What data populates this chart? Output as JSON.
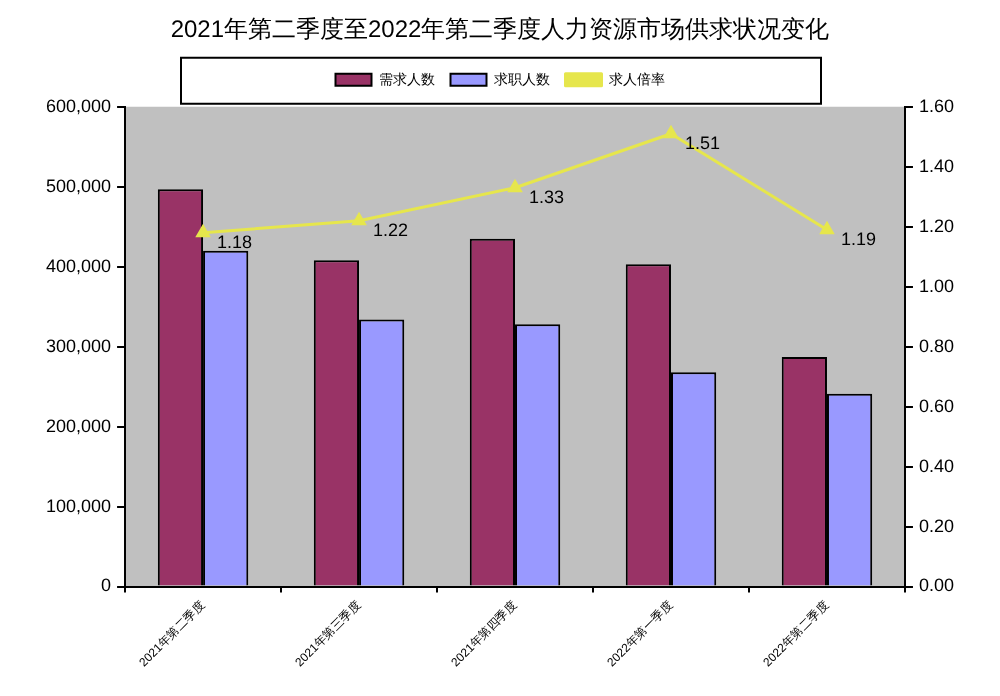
{
  "chart_data": {
    "type": "bar",
    "title": "2021年第二季度至2022年第二季度人力资源市场供求状况变化",
    "categories": [
      "2021年第二季度",
      "2021年第三季度",
      "2021年第四季度",
      "2022年第一季度",
      "2022年第二季度"
    ],
    "series": [
      {
        "name": "需求人数",
        "color": "#993366",
        "values": [
          497000,
          408000,
          435000,
          403000,
          287000
        ]
      },
      {
        "name": "求职人数",
        "color": "#9999ff",
        "values": [
          420000,
          334000,
          328000,
          268000,
          241000
        ]
      },
      {
        "name": "求人倍率",
        "type": "line",
        "axis": "y2",
        "color": "#e6e64c",
        "marker": "triangle",
        "values": [
          1.18,
          1.22,
          1.33,
          1.51,
          1.19
        ],
        "value_labels": [
          "1.18",
          "1.22",
          "1.33",
          "1.51",
          "1.19"
        ]
      }
    ],
    "ylim": [
      0,
      600000
    ],
    "yticks": [
      {
        "value": 0,
        "label": "0"
      },
      {
        "value": 100000,
        "label": "100,000"
      },
      {
        "value": 200000,
        "label": "200,000"
      },
      {
        "value": 300000,
        "label": "300,000"
      },
      {
        "value": 400000,
        "label": "400,000"
      },
      {
        "value": 500000,
        "label": "500,000"
      },
      {
        "value": 600000,
        "label": "600,000"
      }
    ],
    "y2lim": [
      0,
      1.6
    ],
    "y2ticks": [
      {
        "value": 0,
        "label": "0.00"
      },
      {
        "value": 0.2,
        "label": "0.20"
      },
      {
        "value": 0.4,
        "label": "0.40"
      },
      {
        "value": 0.6,
        "label": "0.60"
      },
      {
        "value": 0.8,
        "label": "0.80"
      },
      {
        "value": 1,
        "label": "1.00"
      },
      {
        "value": 1.2,
        "label": "1.20"
      },
      {
        "value": 1.4,
        "label": "1.40"
      },
      {
        "value": 1.6,
        "label": "1.60"
      }
    ],
    "legend": "top"
  }
}
